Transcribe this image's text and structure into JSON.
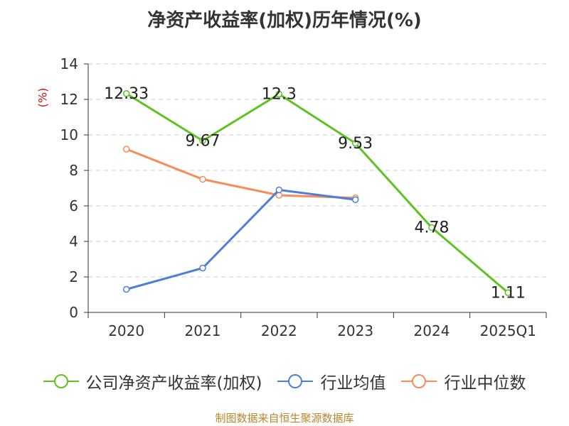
{
  "chart_data": {
    "type": "line",
    "title": "净资产收益率(加权)历年情况(%)",
    "unit_label": "(%)",
    "categories": [
      "2020",
      "2021",
      "2022",
      "2023",
      "2024",
      "2025Q1"
    ],
    "yticks": [
      "0",
      "2",
      "4",
      "6",
      "8",
      "10",
      "12",
      "14"
    ],
    "ylim": [
      0,
      14
    ],
    "grid": true,
    "legend_position": "bottom",
    "series": [
      {
        "name": "公司净资产收益率(加权)",
        "color": "#5cc321",
        "values": [
          12.33,
          9.67,
          12.3,
          9.53,
          4.78,
          1.11
        ],
        "labels": [
          "12.33",
          "9.67",
          "12.3",
          "9.53",
          "4.78",
          "1.11"
        ]
      },
      {
        "name": "行业均值",
        "color": "#4e7fd8",
        "values": [
          1.3,
          2.5,
          6.9,
          6.35,
          null,
          null
        ]
      },
      {
        "name": "行业中位数",
        "color": "#f58c5a",
        "values": [
          9.2,
          7.5,
          6.6,
          6.45,
          null,
          null
        ]
      }
    ],
    "source": "制图数据来自恒生聚源数据库"
  }
}
